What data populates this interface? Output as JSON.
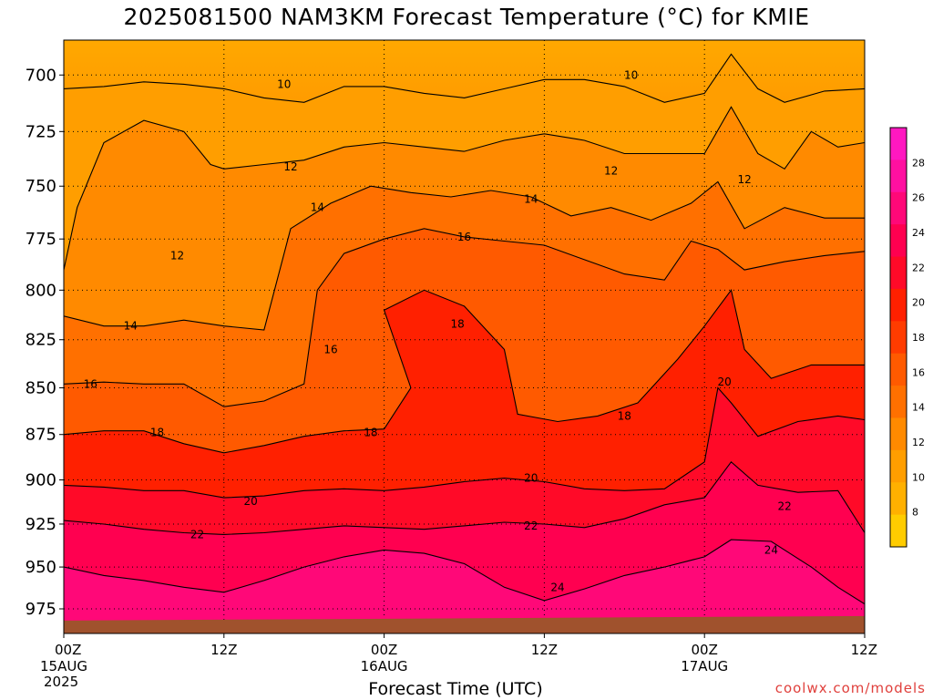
{
  "title": "2025081500 NAM3KM Forecast Temperature (°C) for KMIE",
  "credit": "coolwx.com/models",
  "chart_data": {
    "type": "heatmap",
    "title": "2025081500 NAM3KM Forecast Temperature (°C) for KMIE",
    "xlabel": "Forecast Time (UTC)",
    "ylabel": "",
    "x_ticks": [
      {
        "hours": 0,
        "label": "00Z",
        "sub1": "15AUG",
        "sub2": "2025"
      },
      {
        "hours": 12,
        "label": "12Z",
        "sub1": "",
        "sub2": ""
      },
      {
        "hours": 24,
        "label": "00Z",
        "sub1": "16AUG",
        "sub2": ""
      },
      {
        "hours": 36,
        "label": "12Z",
        "sub1": "",
        "sub2": ""
      },
      {
        "hours": 48,
        "label": "00Z",
        "sub1": "17AUG",
        "sub2": ""
      },
      {
        "hours": 60,
        "label": "12Z",
        "sub1": "",
        "sub2": ""
      }
    ],
    "xlim_hours": [
      0,
      60
    ],
    "y_ticks": [
      700,
      725,
      750,
      775,
      800,
      825,
      850,
      875,
      900,
      925,
      950,
      975
    ],
    "ylim": [
      685,
      990
    ],
    "y_scale": "log-pressure",
    "grid": true,
    "colorbar": {
      "ticks": [
        8,
        10,
        12,
        14,
        16,
        18,
        20,
        22,
        24,
        26,
        28
      ],
      "range": [
        6,
        30
      ],
      "colors": [
        "#ffcc00",
        "#ffb000",
        "#ff9e00",
        "#ff8a00",
        "#ff7000",
        "#ff5a00",
        "#ff3c00",
        "#ff2000",
        "#ff0a28",
        "#ff0050",
        "#ff0878",
        "#ff10a0",
        "#ff18c0"
      ]
    },
    "contours": [
      {
        "value": 10,
        "label": "10",
        "points": [
          [
            0,
            706
          ],
          [
            3,
            705
          ],
          [
            6,
            703
          ],
          [
            9,
            704
          ],
          [
            12,
            706
          ],
          [
            15,
            710
          ],
          [
            18,
            712
          ],
          [
            21,
            705
          ],
          [
            24,
            705
          ],
          [
            27,
            708
          ],
          [
            30,
            710
          ],
          [
            33,
            706
          ],
          [
            36,
            702
          ],
          [
            39,
            702
          ],
          [
            42,
            705
          ],
          [
            45,
            712
          ],
          [
            48,
            708
          ],
          [
            50,
            691
          ],
          [
            52,
            706
          ],
          [
            54,
            712
          ],
          [
            57,
            707
          ],
          [
            60,
            706
          ]
        ],
        "labels": [
          [
            16.5,
            704
          ],
          [
            42.5,
            700
          ]
        ]
      },
      {
        "value": 12,
        "label": "12",
        "points": [
          [
            0,
            790
          ],
          [
            1,
            760
          ],
          [
            3,
            730
          ],
          [
            6,
            720
          ],
          [
            9,
            725
          ],
          [
            11,
            740
          ],
          [
            12,
            742
          ],
          [
            15,
            740
          ],
          [
            18,
            738
          ],
          [
            21,
            732
          ],
          [
            24,
            730
          ],
          [
            27,
            732
          ],
          [
            30,
            734
          ],
          [
            33,
            729
          ],
          [
            36,
            726
          ],
          [
            39,
            729
          ],
          [
            42,
            735
          ],
          [
            45,
            735
          ],
          [
            48,
            735
          ],
          [
            50,
            714
          ],
          [
            52,
            735
          ],
          [
            54,
            742
          ],
          [
            56,
            725
          ],
          [
            58,
            732
          ],
          [
            60,
            730
          ]
        ],
        "labels": [
          [
            8.5,
            783
          ],
          [
            17,
            741
          ],
          [
            41,
            743
          ],
          [
            51,
            747
          ]
        ]
      },
      {
        "value": 14,
        "label": "14",
        "points": [
          [
            0,
            813
          ],
          [
            3,
            818
          ],
          [
            6,
            818
          ],
          [
            9,
            815
          ],
          [
            12,
            818
          ],
          [
            15,
            820
          ],
          [
            17,
            770
          ],
          [
            20,
            758
          ],
          [
            23,
            750
          ],
          [
            26,
            753
          ],
          [
            29,
            755
          ],
          [
            32,
            752
          ],
          [
            35,
            755
          ],
          [
            38,
            764
          ],
          [
            41,
            760
          ],
          [
            44,
            766
          ],
          [
            47,
            758
          ],
          [
            49,
            748
          ],
          [
            51,
            770
          ],
          [
            54,
            760
          ],
          [
            57,
            765
          ],
          [
            60,
            765
          ]
        ],
        "labels": [
          [
            5,
            818
          ],
          [
            19,
            760
          ],
          [
            35,
            756
          ]
        ]
      },
      {
        "value": 16,
        "label": "16",
        "points": [
          [
            0,
            848
          ],
          [
            3,
            847
          ],
          [
            6,
            848
          ],
          [
            9,
            848
          ],
          [
            12,
            860
          ],
          [
            15,
            857
          ],
          [
            18,
            848
          ],
          [
            19,
            800
          ],
          [
            21,
            782
          ],
          [
            24,
            775
          ],
          [
            27,
            770
          ],
          [
            30,
            774
          ],
          [
            33,
            776
          ],
          [
            36,
            778
          ],
          [
            39,
            785
          ],
          [
            42,
            792
          ],
          [
            45,
            795
          ],
          [
            47,
            776
          ],
          [
            49,
            780
          ],
          [
            51,
            790
          ],
          [
            54,
            786
          ],
          [
            57,
            783
          ],
          [
            60,
            781
          ]
        ],
        "labels": [
          [
            2,
            848
          ],
          [
            20,
            830
          ],
          [
            30,
            774
          ]
        ]
      },
      {
        "value": 18,
        "label": "18",
        "points": [
          [
            0,
            875
          ],
          [
            3,
            873
          ],
          [
            6,
            873
          ],
          [
            9,
            880
          ],
          [
            12,
            885
          ],
          [
            15,
            881
          ],
          [
            18,
            876
          ],
          [
            21,
            873
          ],
          [
            24,
            872
          ],
          [
            26,
            850
          ],
          [
            24,
            810
          ],
          [
            27,
            800
          ],
          [
            30,
            808
          ],
          [
            33,
            830
          ],
          [
            34,
            864
          ],
          [
            37,
            868
          ],
          [
            40,
            865
          ],
          [
            43,
            858
          ],
          [
            46,
            835
          ],
          [
            48,
            818
          ],
          [
            50,
            800
          ],
          [
            51,
            830
          ],
          [
            53,
            845
          ],
          [
            56,
            838
          ],
          [
            60,
            838
          ]
        ],
        "labels": [
          [
            7,
            874
          ],
          [
            23,
            874
          ],
          [
            29.5,
            817
          ],
          [
            42,
            865
          ]
        ]
      },
      {
        "value": 20,
        "label": "20",
        "points": [
          [
            0,
            903
          ],
          [
            3,
            904
          ],
          [
            6,
            906
          ],
          [
            9,
            906
          ],
          [
            12,
            910
          ],
          [
            15,
            909
          ],
          [
            18,
            906
          ],
          [
            21,
            905
          ],
          [
            24,
            906
          ],
          [
            27,
            904
          ],
          [
            30,
            901
          ],
          [
            33,
            899
          ],
          [
            36,
            901
          ],
          [
            39,
            905
          ],
          [
            42,
            906
          ],
          [
            45,
            905
          ],
          [
            48,
            890
          ],
          [
            49,
            850
          ],
          [
            50,
            858
          ],
          [
            52,
            876
          ],
          [
            55,
            868
          ],
          [
            58,
            865
          ],
          [
            60,
            867
          ]
        ],
        "labels": [
          [
            14,
            912
          ],
          [
            35,
            899
          ],
          [
            49.5,
            847
          ]
        ]
      },
      {
        "value": 22,
        "label": "22",
        "points": [
          [
            0,
            923
          ],
          [
            3,
            925
          ],
          [
            6,
            928
          ],
          [
            9,
            930
          ],
          [
            12,
            931
          ],
          [
            15,
            930
          ],
          [
            18,
            928
          ],
          [
            21,
            926
          ],
          [
            24,
            927
          ],
          [
            27,
            928
          ],
          [
            30,
            926
          ],
          [
            33,
            924
          ],
          [
            36,
            925
          ],
          [
            39,
            927
          ],
          [
            42,
            922
          ],
          [
            45,
            914
          ],
          [
            48,
            910
          ],
          [
            50,
            890
          ],
          [
            52,
            903
          ],
          [
            55,
            907
          ],
          [
            58,
            906
          ],
          [
            60,
            930
          ]
        ],
        "labels": [
          [
            10,
            931
          ],
          [
            35,
            926
          ],
          [
            54,
            915
          ]
        ]
      },
      {
        "value": 24,
        "label": "24",
        "points": [
          [
            0,
            950
          ],
          [
            3,
            955
          ],
          [
            6,
            958
          ],
          [
            9,
            962
          ],
          [
            12,
            965
          ],
          [
            15,
            958
          ],
          [
            18,
            950
          ],
          [
            21,
            944
          ],
          [
            24,
            940
          ],
          [
            27,
            942
          ],
          [
            30,
            948
          ],
          [
            33,
            962
          ],
          [
            36,
            970
          ],
          [
            39,
            963
          ],
          [
            42,
            955
          ],
          [
            45,
            950
          ],
          [
            48,
            944
          ],
          [
            50,
            934
          ],
          [
            53,
            935
          ],
          [
            56,
            950
          ],
          [
            58,
            962
          ],
          [
            60,
            972
          ]
        ],
        "labels": [
          [
            37,
            962
          ],
          [
            53,
            940
          ]
        ]
      }
    ],
    "ground_top_hb": [
      982,
      983,
      980
    ],
    "ground_band": [
      981,
      990
    ]
  }
}
